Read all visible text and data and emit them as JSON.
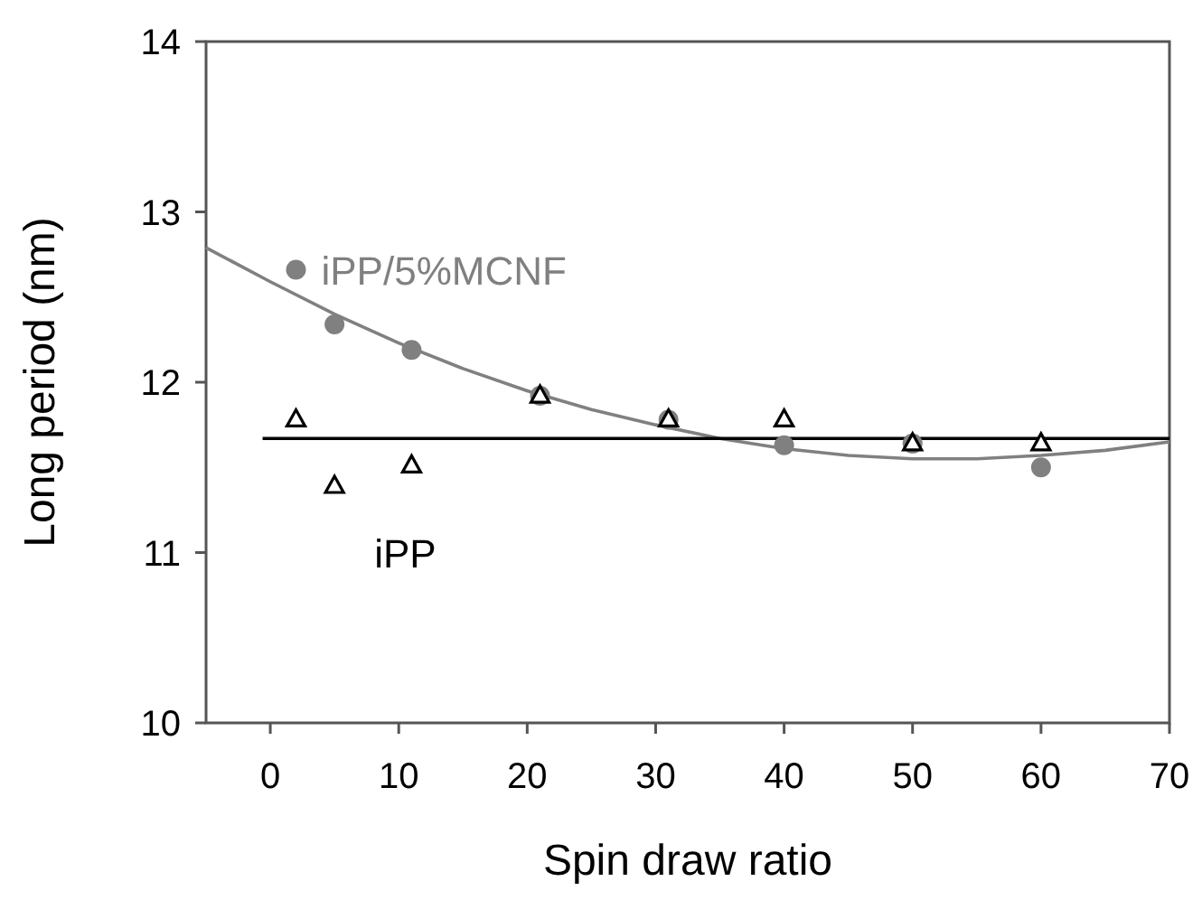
{
  "chart_data": {
    "type": "scatter",
    "xlabel": "Spin draw ratio",
    "ylabel": "Long period (nm)",
    "xlim": [
      -5,
      70
    ],
    "ylim": [
      10,
      14
    ],
    "xticks": [
      0,
      10,
      20,
      30,
      40,
      50,
      60,
      70
    ],
    "yticks": [
      10,
      11,
      12,
      13,
      14
    ],
    "grid": false,
    "series": [
      {
        "type": "line",
        "color": "#808080",
        "line_style": "solid",
        "x": [
          -5,
          0,
          5,
          10,
          15,
          20,
          25,
          30,
          35,
          40,
          45,
          50,
          55,
          60,
          65,
          70
        ],
        "values": [
          12.79,
          12.59,
          12.4,
          12.23,
          12.08,
          11.95,
          11.84,
          11.75,
          11.67,
          11.61,
          11.57,
          11.55,
          11.55,
          11.57,
          11.6,
          11.65
        ]
      },
      {
        "type": "line",
        "color": "#000000",
        "line_style": "solid",
        "x": [
          -0.6,
          70
        ],
        "values": [
          11.67,
          11.67
        ]
      },
      {
        "name": "iPP/5%MCNF",
        "color": "#808080",
        "marker": "circle",
        "x": [
          2,
          5,
          11,
          21,
          31,
          40,
          50,
          60
        ],
        "values": [
          12.66,
          12.34,
          12.19,
          11.92,
          11.78,
          11.63,
          11.64,
          11.5
        ]
      },
      {
        "name": "iPP",
        "color": "#000000",
        "marker": "triangle",
        "x": [
          2,
          5,
          11,
          21,
          31,
          40,
          50,
          60
        ],
        "values": [
          11.78,
          11.39,
          11.51,
          11.92,
          11.78,
          11.78,
          11.64,
          11.64
        ]
      }
    ]
  }
}
